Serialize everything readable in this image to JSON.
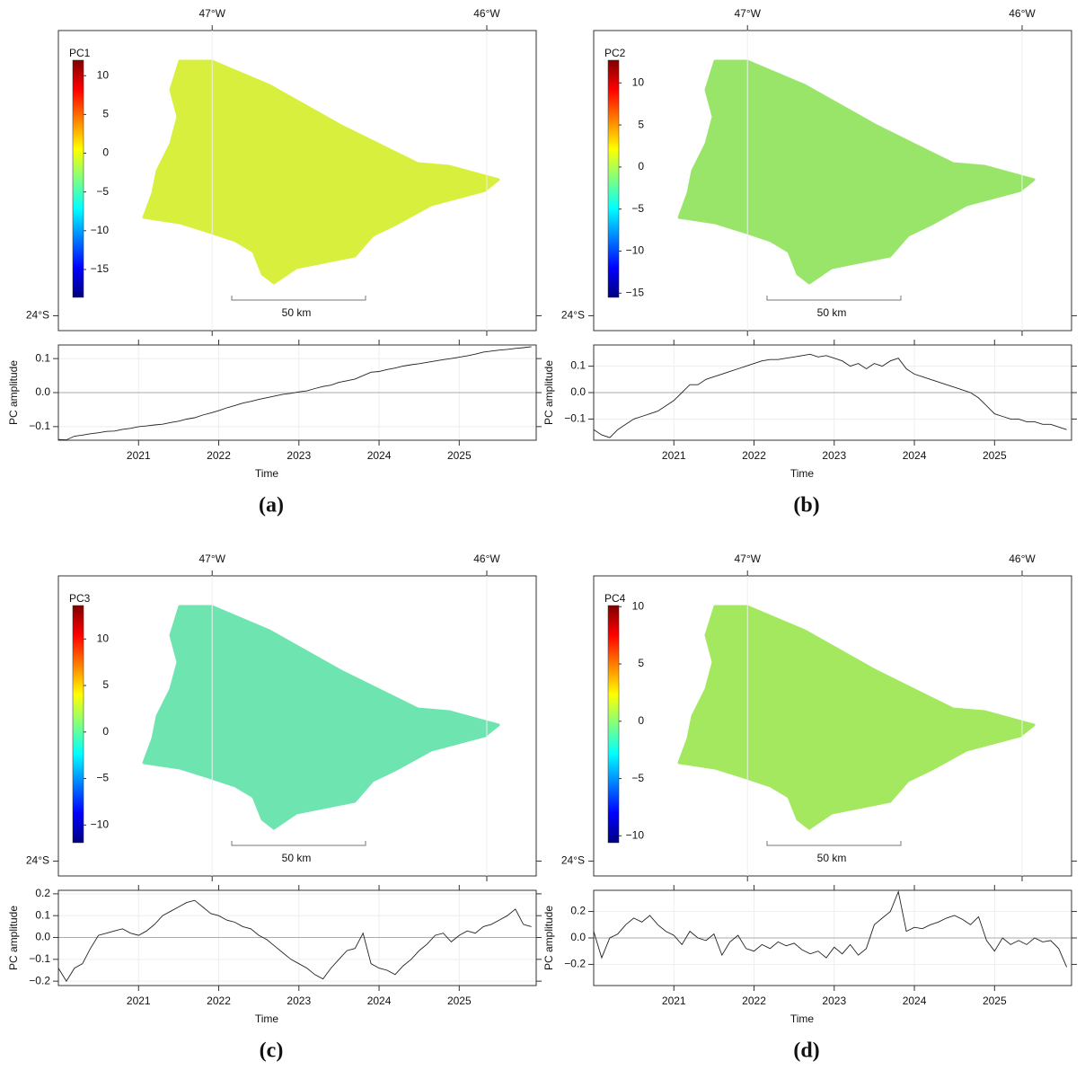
{
  "chart_data": [
    {
      "type": "map",
      "colorbar_label": "PC1",
      "colorbar_lim": [
        -18.6,
        12
      ],
      "colorbar_ticks": [
        10,
        5,
        0,
        {
          "value": -5,
          "label": "−5"
        },
        {
          "value": -10,
          "label": "−10"
        },
        {
          "value": -15,
          "label": "−15"
        }
      ],
      "xlim": [
        -47.56,
        -45.82
      ],
      "xticks": [
        {
          "value": -47,
          "label": "47°W"
        },
        {
          "value": -46,
          "label": "46°W"
        }
      ],
      "ylim": [
        -24.05,
        -23.04
      ],
      "yticks": [
        {
          "value": -24,
          "label": "24°S"
        }
      ],
      "scale_label": "50 km",
      "color": "#d4ee2a"
    },
    {
      "type": "line",
      "ylabel": "PC amplitude",
      "xlabel": "Time",
      "caption": "(a)",
      "xlim": [
        2020.0,
        2025.96
      ],
      "xticks": [
        2021,
        2022,
        2023,
        2024,
        2025
      ],
      "ylim": [
        -0.14,
        0.14
      ],
      "yticks": [
        0.1,
        {
          "value": 0,
          "label": "0.0"
        },
        {
          "value": -0.1,
          "label": "−0.1"
        }
      ],
      "grid": true,
      "color": "#222222",
      "x": [
        2020.0,
        2020.1,
        2020.2,
        2020.3,
        2020.4,
        2020.5,
        2020.6,
        2020.7,
        2020.8,
        2020.9,
        2021.0,
        2021.1,
        2021.2,
        2021.3,
        2021.4,
        2021.5,
        2021.6,
        2021.7,
        2021.8,
        2021.9,
        2022.0,
        2022.1,
        2022.2,
        2022.3,
        2022.4,
        2022.5,
        2022.6,
        2022.7,
        2022.8,
        2022.9,
        2023.0,
        2023.1,
        2023.2,
        2023.3,
        2023.4,
        2023.5,
        2023.6,
        2023.7,
        2023.8,
        2023.9,
        2024.0,
        2024.1,
        2024.2,
        2024.3,
        2024.4,
        2024.5,
        2024.6,
        2024.7,
        2024.8,
        2024.9,
        2025.0,
        2025.1,
        2025.2,
        2025.3,
        2025.4,
        2025.5,
        2025.6,
        2025.7,
        2025.8,
        2025.9
      ],
      "values": [
        -0.138,
        -0.139,
        -0.128,
        -0.125,
        -0.121,
        -0.118,
        -0.114,
        -0.113,
        -0.108,
        -0.105,
        -0.1,
        -0.098,
        -0.095,
        -0.093,
        -0.088,
        -0.084,
        -0.078,
        -0.074,
        -0.066,
        -0.06,
        -0.053,
        -0.045,
        -0.038,
        -0.031,
        -0.026,
        -0.02,
        -0.015,
        -0.01,
        -0.005,
        -0.002,
        0.002,
        0.005,
        0.012,
        0.018,
        0.022,
        0.03,
        0.035,
        0.04,
        0.05,
        0.06,
        0.062,
        0.068,
        0.072,
        0.078,
        0.082,
        0.085,
        0.089,
        0.093,
        0.097,
        0.1,
        0.104,
        0.108,
        0.113,
        0.119,
        0.122,
        0.125,
        0.127,
        0.13,
        0.132,
        0.135
      ]
    },
    {
      "type": "map",
      "colorbar_label": "PC2",
      "colorbar_lim": [
        -15.5,
        12.7
      ],
      "colorbar_ticks": [
        10,
        5,
        0,
        {
          "value": -5,
          "label": "−5"
        },
        {
          "value": -10,
          "label": "−10"
        },
        {
          "value": -15,
          "label": "−15"
        }
      ],
      "xlim": [
        -47.56,
        -45.82
      ],
      "xticks": [
        {
          "value": -47,
          "label": "47°W"
        },
        {
          "value": -46,
          "label": "46°W"
        }
      ],
      "ylim": [
        -24.05,
        -23.04
      ],
      "yticks": [
        {
          "value": -24,
          "label": "24°S"
        }
      ],
      "scale_label": "50 km",
      "color": "#8fe35a"
    },
    {
      "type": "line",
      "ylabel": "PC amplitude",
      "xlabel": "Time",
      "caption": "(b)",
      "xlim": [
        2020.0,
        2025.96
      ],
      "xticks": [
        2021,
        2022,
        2023,
        2024,
        2025
      ],
      "ylim": [
        -0.18,
        0.18
      ],
      "yticks": [
        0.1,
        {
          "value": 0,
          "label": "0.0"
        },
        {
          "value": -0.1,
          "label": "−0.1"
        }
      ],
      "grid": true,
      "color": "#222222",
      "x": [
        2020.0,
        2020.1,
        2020.2,
        2020.3,
        2020.4,
        2020.5,
        2020.6,
        2020.7,
        2020.8,
        2020.9,
        2021.0,
        2021.1,
        2021.2,
        2021.3,
        2021.4,
        2021.5,
        2021.6,
        2021.7,
        2021.8,
        2021.9,
        2022.0,
        2022.1,
        2022.2,
        2022.3,
        2022.4,
        2022.5,
        2022.6,
        2022.7,
        2022.8,
        2022.9,
        2023.0,
        2023.1,
        2023.2,
        2023.3,
        2023.4,
        2023.5,
        2023.6,
        2023.7,
        2023.8,
        2023.9,
        2024.0,
        2024.1,
        2024.2,
        2024.3,
        2024.4,
        2024.5,
        2024.6,
        2024.7,
        2024.8,
        2024.9,
        2025.0,
        2025.1,
        2025.2,
        2025.3,
        2025.4,
        2025.5,
        2025.6,
        2025.7,
        2025.8,
        2025.9
      ],
      "values": [
        -0.14,
        -0.16,
        -0.17,
        -0.14,
        -0.12,
        -0.1,
        -0.09,
        -0.08,
        -0.07,
        -0.05,
        -0.03,
        0.0,
        0.03,
        0.03,
        0.05,
        0.06,
        0.07,
        0.08,
        0.09,
        0.1,
        0.11,
        0.12,
        0.125,
        0.125,
        0.13,
        0.135,
        0.14,
        0.145,
        0.135,
        0.14,
        0.13,
        0.12,
        0.1,
        0.11,
        0.09,
        0.11,
        0.1,
        0.12,
        0.13,
        0.09,
        0.07,
        0.06,
        0.05,
        0.04,
        0.03,
        0.02,
        0.01,
        0.0,
        -0.02,
        -0.05,
        -0.08,
        -0.09,
        -0.1,
        -0.1,
        -0.11,
        -0.11,
        -0.12,
        -0.12,
        -0.13,
        -0.14
      ]
    },
    {
      "type": "map",
      "colorbar_label": "PC3",
      "colorbar_lim": [
        -11.9,
        13.6
      ],
      "colorbar_ticks": [
        10,
        5,
        0,
        {
          "value": -5,
          "label": "−5"
        },
        {
          "value": -10,
          "label": "−10"
        }
      ],
      "xlim": [
        -47.56,
        -45.82
      ],
      "xticks": [
        {
          "value": -47,
          "label": "47°W"
        },
        {
          "value": -46,
          "label": "46°W"
        }
      ],
      "ylim": [
        -24.05,
        -23.04
      ],
      "yticks": [
        {
          "value": -24,
          "label": "24°S"
        }
      ],
      "scale_label": "50 km",
      "color": "#5fe3a8"
    },
    {
      "type": "line",
      "ylabel": "PC amplitude",
      "xlabel": "Time",
      "caption": "(c)",
      "xlim": [
        2020.0,
        2025.96
      ],
      "xticks": [
        2021,
        2022,
        2023,
        2024,
        2025
      ],
      "ylim": [
        -0.22,
        0.216
      ],
      "yticks": [
        0.2,
        0.1,
        {
          "value": 0,
          "label": "0.0"
        },
        {
          "value": -0.1,
          "label": "−0.1"
        },
        {
          "value": -0.2,
          "label": "−0.2"
        }
      ],
      "grid": true,
      "color": "#222222",
      "x": [
        2020.0,
        2020.1,
        2020.2,
        2020.3,
        2020.4,
        2020.5,
        2020.6,
        2020.7,
        2020.8,
        2020.9,
        2021.0,
        2021.1,
        2021.2,
        2021.3,
        2021.4,
        2021.5,
        2021.6,
        2021.7,
        2021.8,
        2021.9,
        2022.0,
        2022.1,
        2022.2,
        2022.3,
        2022.4,
        2022.5,
        2022.6,
        2022.7,
        2022.8,
        2022.9,
        2023.0,
        2023.1,
        2023.2,
        2023.3,
        2023.4,
        2023.5,
        2023.6,
        2023.7,
        2023.8,
        2023.9,
        2024.0,
        2024.1,
        2024.2,
        2024.3,
        2024.4,
        2024.5,
        2024.6,
        2024.7,
        2024.8,
        2024.9,
        2025.0,
        2025.1,
        2025.2,
        2025.3,
        2025.4,
        2025.5,
        2025.6,
        2025.7,
        2025.8,
        2025.9
      ],
      "values": [
        -0.14,
        -0.2,
        -0.14,
        -0.12,
        -0.05,
        0.01,
        0.02,
        0.03,
        0.04,
        0.02,
        0.01,
        0.03,
        0.06,
        0.1,
        0.12,
        0.14,
        0.16,
        0.17,
        0.14,
        0.11,
        0.1,
        0.08,
        0.07,
        0.05,
        0.04,
        0.01,
        -0.01,
        -0.04,
        -0.07,
        -0.1,
        -0.12,
        -0.14,
        -0.17,
        -0.19,
        -0.14,
        -0.1,
        -0.06,
        -0.05,
        0.02,
        -0.12,
        -0.14,
        -0.15,
        -0.17,
        -0.13,
        -0.1,
        -0.06,
        -0.03,
        0.01,
        0.02,
        -0.02,
        0.01,
        0.03,
        0.02,
        0.05,
        0.06,
        0.08,
        0.1,
        0.13,
        0.06,
        0.05
      ]
    },
    {
      "type": "map",
      "colorbar_label": "PC4",
      "colorbar_lim": [
        -10.6,
        10.1
      ],
      "colorbar_ticks": [
        10,
        5,
        0,
        {
          "value": -5,
          "label": "−5"
        },
        {
          "value": -10,
          "label": "−10"
        }
      ],
      "xlim": [
        -47.56,
        -45.82
      ],
      "xticks": [
        {
          "value": -47,
          "label": "47°W"
        },
        {
          "value": -46,
          "label": "46°W"
        }
      ],
      "ylim": [
        -24.05,
        -23.04
      ],
      "yticks": [
        {
          "value": -24,
          "label": "24°S"
        }
      ],
      "scale_label": "50 km",
      "color": "#9ae64e"
    },
    {
      "type": "line",
      "ylabel": "PC amplitude",
      "xlabel": "Time",
      "caption": "(d)",
      "xlim": [
        2020.0,
        2025.96
      ],
      "xticks": [
        2021,
        2022,
        2023,
        2024,
        2025
      ],
      "ylim": [
        -0.36,
        0.36
      ],
      "yticks": [
        0.2,
        {
          "value": 0,
          "label": "0.0"
        },
        {
          "value": -0.2,
          "label": "−0.2"
        }
      ],
      "grid": true,
      "color": "#222222",
      "x": [
        2020.0,
        2020.1,
        2020.2,
        2020.3,
        2020.4,
        2020.5,
        2020.6,
        2020.7,
        2020.8,
        2020.9,
        2021.0,
        2021.1,
        2021.2,
        2021.3,
        2021.4,
        2021.5,
        2021.6,
        2021.7,
        2021.8,
        2021.9,
        2022.0,
        2022.1,
        2022.2,
        2022.3,
        2022.4,
        2022.5,
        2022.6,
        2022.7,
        2022.8,
        2022.9,
        2023.0,
        2023.1,
        2023.2,
        2023.3,
        2023.4,
        2023.5,
        2023.6,
        2023.7,
        2023.8,
        2023.9,
        2024.0,
        2024.1,
        2024.2,
        2024.3,
        2024.4,
        2024.5,
        2024.6,
        2024.7,
        2024.8,
        2024.9,
        2025.0,
        2025.1,
        2025.2,
        2025.3,
        2025.4,
        2025.5,
        2025.6,
        2025.7,
        2025.8,
        2025.9
      ],
      "values": [
        0.05,
        -0.15,
        0.0,
        0.03,
        0.1,
        0.15,
        0.12,
        0.17,
        0.1,
        0.05,
        0.02,
        -0.05,
        0.05,
        0.0,
        -0.02,
        0.03,
        -0.13,
        -0.03,
        0.02,
        -0.08,
        -0.1,
        -0.05,
        -0.08,
        -0.03,
        -0.06,
        -0.04,
        -0.09,
        -0.12,
        -0.1,
        -0.15,
        -0.07,
        -0.12,
        -0.05,
        -0.13,
        -0.08,
        0.1,
        0.15,
        0.2,
        0.35,
        0.05,
        0.08,
        0.07,
        0.1,
        0.12,
        0.15,
        0.17,
        0.14,
        0.1,
        0.16,
        -0.02,
        -0.1,
        0.0,
        -0.05,
        -0.02,
        -0.05,
        0.0,
        -0.03,
        -0.02,
        -0.08,
        -0.22
      ]
    }
  ]
}
